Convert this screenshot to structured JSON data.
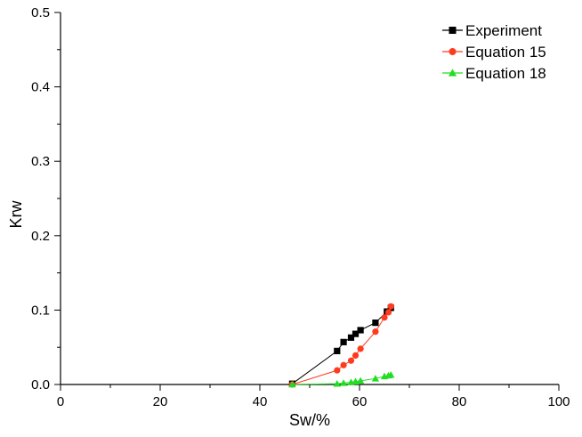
{
  "chart_data": {
    "type": "scatter",
    "title": "",
    "xlabel": "Sw/%",
    "ylabel": "Krw",
    "xlim": [
      0,
      100
    ],
    "ylim": [
      0,
      0.5
    ],
    "xticks": [
      "0",
      "20",
      "40",
      "60",
      "80",
      "100"
    ],
    "yticks": [
      "0.0",
      "0.1",
      "0.2",
      "0.3",
      "0.4",
      "0.5"
    ],
    "grid": false,
    "legend_position": "top-right",
    "series": [
      {
        "name": "Experiment",
        "color": "#000000",
        "marker": "square",
        "x": [
          46.5,
          55.5,
          56.8,
          58.3,
          59.2,
          60.2,
          63.2,
          65.5,
          66.3
        ],
        "y": [
          0.001,
          0.045,
          0.057,
          0.063,
          0.068,
          0.073,
          0.083,
          0.098,
          0.103
        ]
      },
      {
        "name": "Equation 15",
        "color": "#ff3b1f",
        "marker": "circle",
        "x": [
          46.5,
          55.5,
          56.8,
          58.3,
          59.2,
          60.2,
          63.2,
          65.0,
          65.8,
          66.3
        ],
        "y": [
          0.0,
          0.019,
          0.026,
          0.032,
          0.039,
          0.048,
          0.071,
          0.09,
          0.097,
          0.105
        ]
      },
      {
        "name": "Equation 18",
        "color": "#22dd22",
        "marker": "triangle",
        "x": [
          46.5,
          55.5,
          56.8,
          58.3,
          59.2,
          60.2,
          63.2,
          65.0,
          65.8,
          66.3
        ],
        "y": [
          0.0,
          0.001,
          0.002,
          0.003,
          0.004,
          0.005,
          0.008,
          0.011,
          0.012,
          0.013
        ]
      }
    ]
  }
}
